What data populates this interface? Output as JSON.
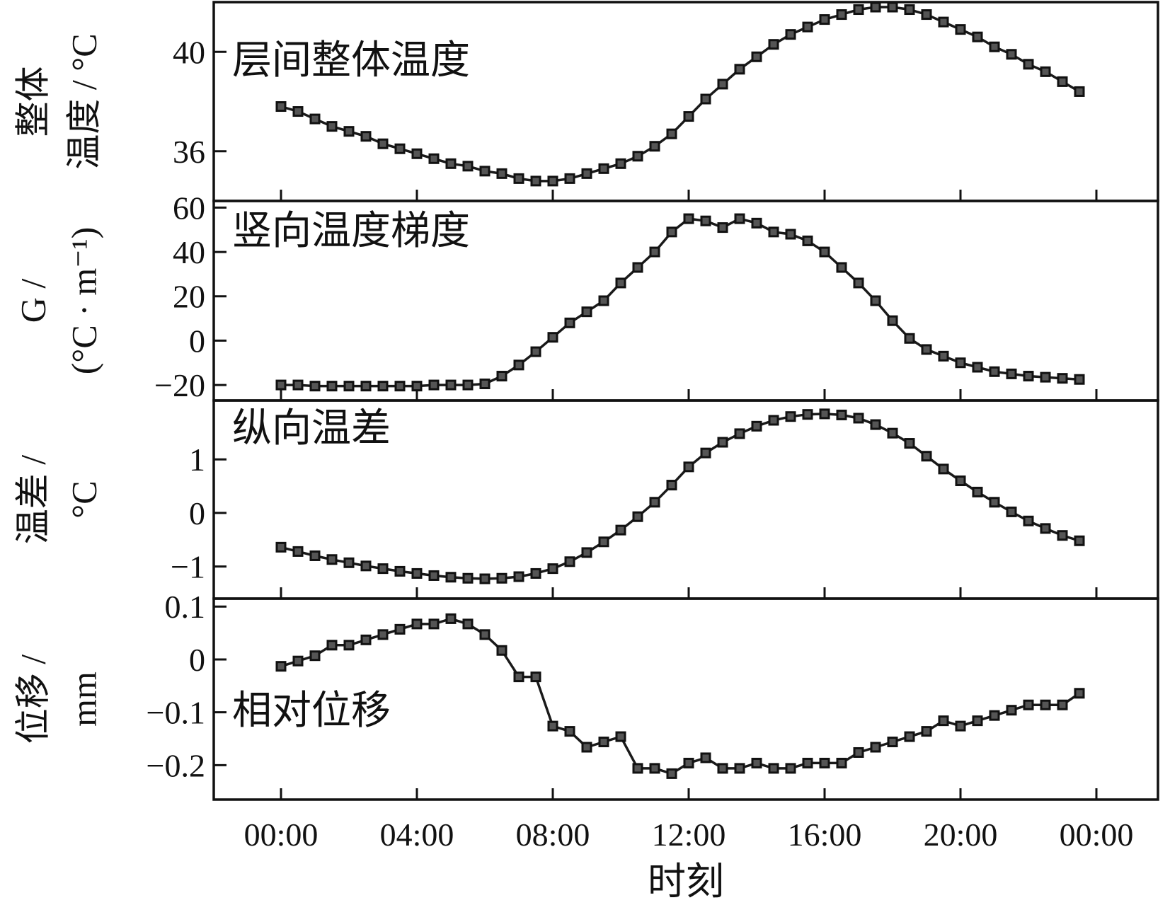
{
  "chart_data": {
    "type": "line",
    "xlabel": "时刻",
    "x_ticks": [
      "00:00",
      "04:00",
      "08:00",
      "12:00",
      "16:00",
      "20:00",
      "00:00"
    ],
    "x": [
      0,
      0.5,
      1,
      1.5,
      2,
      2.5,
      3,
      3.5,
      4,
      4.5,
      5,
      5.5,
      6,
      6.5,
      7,
      7.5,
      8,
      8.5,
      9,
      9.5,
      10,
      10.5,
      11,
      11.5,
      12,
      12.5,
      13,
      13.5,
      14,
      14.5,
      15,
      15.5,
      16,
      16.5,
      17,
      17.5,
      18,
      18.5,
      19,
      19.5,
      20,
      20.5,
      21,
      21.5,
      22,
      22.5,
      23,
      23.5
    ],
    "panels": [
      {
        "title": "层间整体温度",
        "ylabel_lines": [
          "整体",
          "温度 / °C"
        ],
        "yticks": [
          40,
          36
        ],
        "ytick_labels": [
          "40",
          "36"
        ],
        "ylim": [
          34,
          42
        ],
        "values": [
          37.8,
          37.6,
          37.3,
          37.0,
          36.8,
          36.6,
          36.3,
          36.1,
          35.9,
          35.7,
          35.5,
          35.4,
          35.2,
          35.1,
          34.9,
          34.8,
          34.8,
          34.9,
          35.1,
          35.3,
          35.5,
          35.8,
          36.2,
          36.7,
          37.4,
          38.1,
          38.7,
          39.3,
          39.8,
          40.3,
          40.7,
          41.0,
          41.3,
          41.5,
          41.7,
          41.8,
          41.8,
          41.7,
          41.5,
          41.2,
          40.9,
          40.6,
          40.2,
          39.9,
          39.5,
          39.2,
          38.8,
          38.4
        ]
      },
      {
        "title": "竖向温度梯度",
        "ylabel_lines": [
          "G /",
          "(°C · m⁻¹)"
        ],
        "yticks": [
          60,
          40,
          20,
          0,
          -20
        ],
        "ytick_labels": [
          "60",
          "40",
          "20",
          "0",
          "−20"
        ],
        "ylim": [
          -27,
          63
        ],
        "values": [
          -20,
          -20,
          -20.5,
          -20.5,
          -20.5,
          -20.5,
          -20.5,
          -20.5,
          -20.5,
          -20,
          -20,
          -20,
          -19.5,
          -16,
          -11,
          -5,
          1.5,
          8,
          13,
          18,
          26,
          33,
          40,
          49,
          55,
          54,
          51,
          55,
          53,
          49,
          48,
          45,
          40,
          33,
          26,
          18,
          9,
          1,
          -4,
          -7,
          -10,
          -12,
          -14,
          -15,
          -16,
          -16.5,
          -17,
          -17.5
        ]
      },
      {
        "title": "纵向温差",
        "ylabel_lines": [
          "温差 /",
          "°C"
        ],
        "yticks": [
          1,
          0,
          -1
        ],
        "ytick_labels": [
          "1",
          "0",
          "−1"
        ],
        "ylim": [
          -1.6,
          2.1
        ],
        "values": [
          -0.64,
          -0.72,
          -0.8,
          -0.87,
          -0.93,
          -0.99,
          -1.04,
          -1.09,
          -1.13,
          -1.17,
          -1.2,
          -1.22,
          -1.23,
          -1.22,
          -1.19,
          -1.13,
          -1.04,
          -0.91,
          -0.74,
          -0.54,
          -0.32,
          -0.07,
          0.2,
          0.52,
          0.86,
          1.12,
          1.32,
          1.48,
          1.62,
          1.73,
          1.8,
          1.84,
          1.85,
          1.83,
          1.77,
          1.65,
          1.49,
          1.3,
          1.06,
          0.82,
          0.6,
          0.39,
          0.2,
          0.02,
          -0.15,
          -0.29,
          -0.42,
          -0.52
        ]
      },
      {
        "title": "相对位移",
        "ylabel_lines": [
          "位移 /",
          "mm"
        ],
        "yticks": [
          0.1,
          0,
          -0.1,
          -0.2
        ],
        "ytick_labels": [
          "0.1",
          "0",
          "−0.1",
          "−0.2"
        ],
        "ylim": [
          -0.265,
          0.115
        ],
        "values": [
          -0.013,
          -0.003,
          0.007,
          0.027,
          0.027,
          0.037,
          0.047,
          0.057,
          0.067,
          0.067,
          0.077,
          0.067,
          0.047,
          0.017,
          -0.033,
          -0.033,
          -0.126,
          -0.136,
          -0.166,
          -0.156,
          -0.146,
          -0.206,
          -0.206,
          -0.216,
          -0.196,
          -0.186,
          -0.206,
          -0.206,
          -0.196,
          -0.206,
          -0.206,
          -0.196,
          -0.196,
          -0.196,
          -0.176,
          -0.166,
          -0.156,
          -0.146,
          -0.136,
          -0.116,
          -0.126,
          -0.116,
          -0.106,
          -0.096,
          -0.086,
          -0.086,
          -0.086,
          -0.064
        ]
      }
    ]
  }
}
